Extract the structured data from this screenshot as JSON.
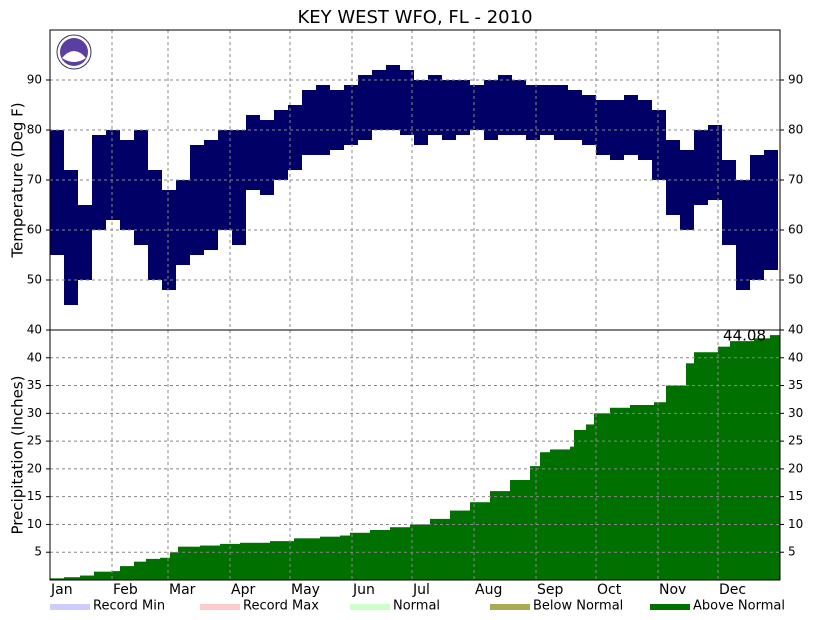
{
  "chart_data": [
    {
      "type": "range_bar",
      "title": "KEY WEST WFO, FL - 2010",
      "ylabel": "Temperature (Deg F)",
      "color": "#000066",
      "x": [
        0,
        7,
        14,
        21,
        28,
        35,
        42,
        49,
        56,
        63,
        70,
        77,
        84,
        91,
        98,
        105,
        112,
        119,
        126,
        133,
        140,
        147,
        154,
        161,
        168,
        175,
        182,
        189,
        196,
        203,
        210,
        217,
        224,
        231,
        238,
        245,
        252,
        259,
        266,
        273,
        280,
        287,
        294,
        301,
        308,
        315,
        322,
        329,
        336,
        343,
        350,
        357
      ],
      "low": [
        55,
        45,
        50,
        60,
        62,
        60,
        57,
        50,
        48,
        53,
        55,
        56,
        60,
        57,
        68,
        67,
        70,
        72,
        75,
        75,
        76,
        77,
        78,
        80,
        80,
        79,
        77,
        79,
        78,
        79,
        80,
        78,
        79,
        79,
        78,
        79,
        78,
        78,
        77,
        75,
        74,
        75,
        74,
        70,
        63,
        60,
        65,
        66,
        57,
        48,
        50,
        52
      ],
      "high": [
        80,
        72,
        65,
        79,
        80,
        78,
        80,
        72,
        68,
        70,
        77,
        78,
        80,
        80,
        83,
        82,
        84,
        85,
        88,
        89,
        88,
        89,
        91,
        92,
        93,
        92,
        90,
        91,
        90,
        90,
        89,
        90,
        91,
        90,
        89,
        89,
        89,
        88,
        87,
        86,
        86,
        87,
        86,
        84,
        78,
        76,
        80,
        81,
        74,
        70,
        75,
        76
      ],
      "xlim": [
        0,
        365
      ],
      "xticks": [
        {
          "value": 0,
          "label": "Jan"
        },
        {
          "value": 31,
          "label": "Feb"
        },
        {
          "value": 59,
          "label": "Mar"
        },
        {
          "value": 90,
          "label": "Apr"
        },
        {
          "value": 120,
          "label": "May"
        },
        {
          "value": 151,
          "label": "Jun"
        },
        {
          "value": 181,
          "label": "Jul"
        },
        {
          "value": 212,
          "label": "Aug"
        },
        {
          "value": 243,
          "label": "Sep"
        },
        {
          "value": 273,
          "label": "Oct"
        },
        {
          "value": 304,
          "label": "Nov"
        },
        {
          "value": 334,
          "label": "Dec"
        }
      ],
      "ylim": [
        40,
        100
      ],
      "yticks": [
        40,
        50,
        60,
        70,
        80,
        90
      ],
      "grid": true
    },
    {
      "type": "step_area",
      "ylabel": "Precipitation (Inches)",
      "color": "#007000",
      "x": [
        0,
        7,
        15,
        22,
        31,
        35,
        42,
        48,
        55,
        60,
        64,
        75,
        85,
        95,
        110,
        122,
        135,
        145,
        150,
        160,
        170,
        180,
        190,
        200,
        210,
        220,
        230,
        240,
        245,
        250,
        260,
        262,
        268,
        272,
        280,
        290,
        302,
        308,
        318,
        322,
        334,
        340,
        352,
        360
      ],
      "values": [
        0.3,
        0.5,
        0.8,
        1.5,
        1.6,
        2.5,
        3.3,
        3.8,
        4.0,
        5.0,
        6.0,
        6.2,
        6.5,
        6.7,
        7.0,
        7.5,
        7.8,
        8.0,
        8.5,
        9.0,
        9.5,
        10.0,
        11.0,
        12.5,
        14.0,
        16.0,
        18.0,
        20.5,
        23.0,
        23.5,
        24.0,
        27.0,
        28.0,
        30.0,
        31.0,
        31.5,
        32.0,
        35.0,
        39.0,
        41.0,
        42.0,
        43.0,
        43.5,
        44.08
      ],
      "xlim": [
        0,
        365
      ],
      "ylim": [
        0,
        45
      ],
      "yticks": [
        5,
        10,
        15,
        20,
        25,
        30,
        35,
        40
      ],
      "grid": true,
      "legend": [
        {
          "name": "Record Min",
          "color": "#ccccff"
        },
        {
          "name": "Record Max",
          "color": "#ffcccc"
        },
        {
          "name": "Normal",
          "color": "#ccffcc"
        },
        {
          "name": "Below Normal",
          "color": "#aaaa55"
        },
        {
          "name": "Above Normal",
          "color": "#007000"
        }
      ]
    }
  ]
}
